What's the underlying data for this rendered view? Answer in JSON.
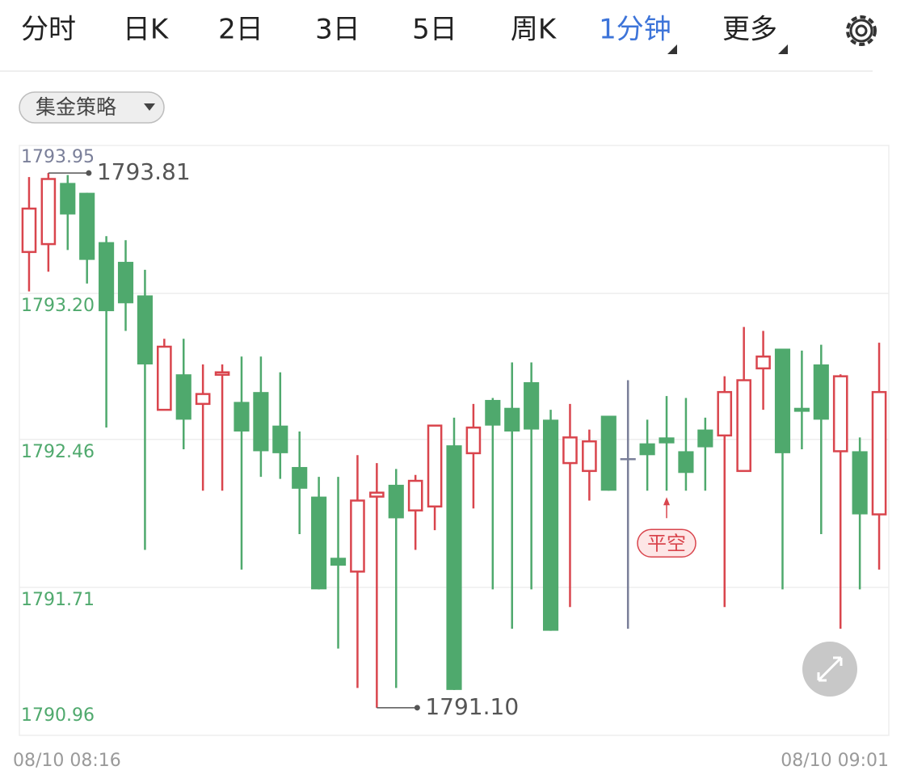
{
  "tabs": [
    {
      "label": "分时"
    },
    {
      "label": "日K"
    },
    {
      "label": "2日"
    },
    {
      "label": "3日"
    },
    {
      "label": "5日"
    },
    {
      "label": "周K"
    },
    {
      "label": "1分钟",
      "active": true,
      "dropdown": true
    },
    {
      "label": "更多",
      "dropdown": true
    }
  ],
  "strategy_button": "集金策略",
  "chart_data": {
    "type": "candlestick",
    "up_color": "#d9454d",
    "down_color": "#4fa96d",
    "flat_color": "#7a7f99",
    "open": [
      1793.41,
      1793.45,
      1793.76,
      1793.71,
      1793.46,
      1793.36,
      1793.19,
      1792.61,
      1792.79,
      1792.64,
      1792.79,
      1792.65,
      1792.7,
      1792.53,
      1792.32,
      1792.17,
      1791.86,
      1791.79,
      1792.17,
      1792.23,
      1792.1,
      1792.12,
      1792.43,
      1792.39,
      1792.66,
      1792.62,
      1792.75,
      1792.56,
      1792.34,
      1792.3,
      1792.58,
      1792.36,
      1792.44,
      1792.47,
      1792.4,
      1792.51,
      1792.48,
      1792.3,
      1792.82,
      1792.92,
      1792.62,
      1792.84,
      1792.4,
      1792.4,
      1792.08
    ],
    "close": [
      1793.63,
      1793.78,
      1793.6,
      1793.37,
      1793.11,
      1793.15,
      1792.84,
      1792.93,
      1792.56,
      1792.69,
      1792.8,
      1792.5,
      1792.4,
      1792.39,
      1792.21,
      1791.7,
      1791.82,
      1792.15,
      1792.19,
      1792.06,
      1792.25,
      1792.53,
      1791.19,
      1792.52,
      1792.53,
      1792.5,
      1792.51,
      1791.49,
      1792.47,
      1792.45,
      1792.2,
      1792.36,
      1792.38,
      1792.44,
      1792.29,
      1792.42,
      1792.7,
      1792.76,
      1792.88,
      1792.39,
      1792.6,
      1792.56,
      1792.78,
      1792.08,
      1792.7
    ],
    "high": [
      1793.79,
      1793.81,
      1793.8,
      1793.71,
      1793.49,
      1793.47,
      1793.32,
      1792.97,
      1792.97,
      1792.84,
      1792.84,
      1792.88,
      1792.88,
      1792.8,
      1792.5,
      1792.27,
      1792.27,
      1792.38,
      1792.34,
      1792.31,
      1792.28,
      1792.53,
      1792.57,
      1792.64,
      1792.67,
      1792.85,
      1792.85,
      1792.61,
      1792.64,
      1792.51,
      1792.58,
      1792.76,
      1792.56,
      1792.68,
      1792.67,
      1792.57,
      1792.78,
      1793.03,
      1793.01,
      1792.92,
      1792.91,
      1792.94,
      1792.79,
      1792.47,
      1792.95
    ],
    "low": [
      1793.21,
      1793.31,
      1793.42,
      1793.25,
      1792.52,
      1793.01,
      1791.9,
      1792.61,
      1792.41,
      1792.2,
      1792.2,
      1791.8,
      1792.27,
      1792.26,
      1791.98,
      1791.7,
      1791.4,
      1791.2,
      1791.1,
      1791.2,
      1791.9,
      1792.0,
      1791.19,
      1792.11,
      1791.7,
      1791.5,
      1791.7,
      1791.49,
      1791.61,
      1792.15,
      1792.2,
      1791.5,
      1792.2,
      1792.2,
      1792.2,
      1792.2,
      1791.61,
      1792.3,
      1792.61,
      1791.7,
      1792.41,
      1791.98,
      1791.5,
      1791.7,
      1791.8
    ],
    "ylim": [
      1790.96,
      1793.95
    ],
    "yticks": [
      {
        "value": 1793.95,
        "label": "1793.95"
      },
      {
        "value": 1793.2,
        "label": "1793.20"
      },
      {
        "value": 1792.46,
        "label": "1792.46"
      },
      {
        "value": 1791.71,
        "label": "1791.71"
      },
      {
        "value": 1790.96,
        "label": "1790.96"
      }
    ],
    "ytick_colors": [
      "#7a7f99",
      "#4fa96d",
      "#4fa96d",
      "#4fa96d",
      "#4fa96d"
    ],
    "grid": true,
    "high_label": {
      "value": 1793.81,
      "label": "1793.81"
    },
    "low_label": {
      "value": 1791.1,
      "label": "1791.10"
    },
    "signal": {
      "label": "平空",
      "index": 33
    },
    "x_labels": [
      "08/10 08:16",
      "08/10 09:01"
    ]
  }
}
